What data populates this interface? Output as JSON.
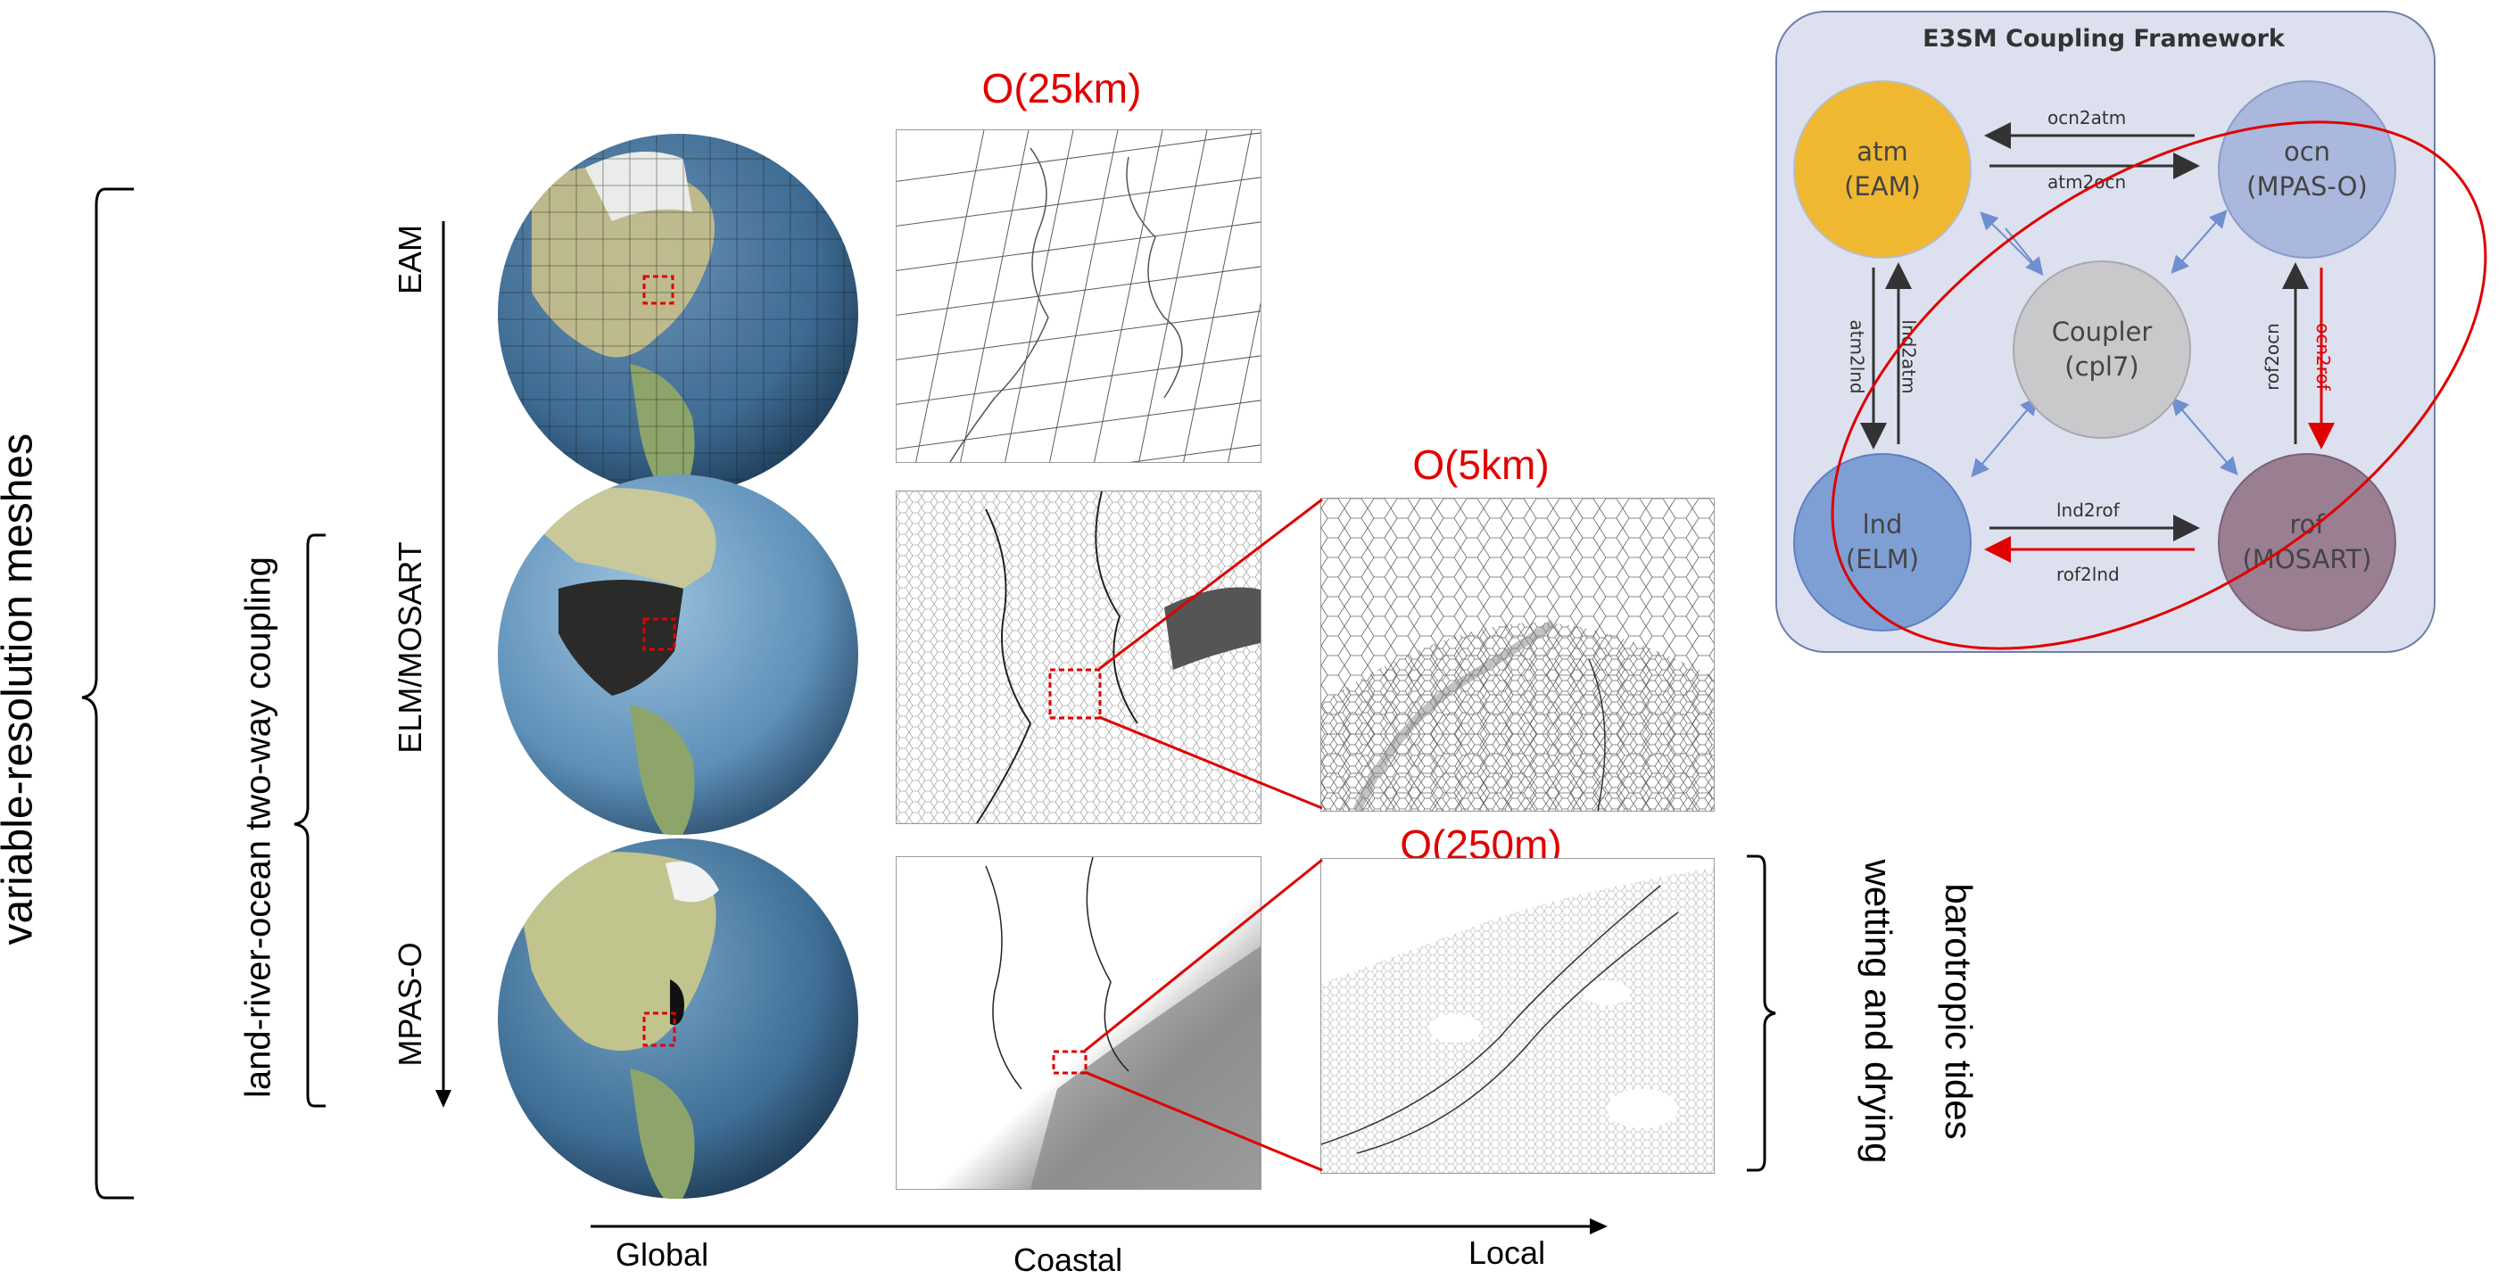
{
  "left_labels": {
    "variable_resolution": "variable-resolution meshes",
    "coupling": "land-river-ocean two-way coupling"
  },
  "model_labels": {
    "eam": "EAM",
    "elm_mosart": "ELM/MOSART",
    "mpas_o": "MPAS-O"
  },
  "resolution_labels": {
    "r25km": "O(25km)",
    "r5km": "O(5km)",
    "r250m": "O(250m)"
  },
  "axis": {
    "global": "Global",
    "coastal": "Coastal",
    "local": "Local"
  },
  "right_labels": {
    "tides": "barotropic tides",
    "wetting": "wetting and drying"
  },
  "framework": {
    "title": "E3SM Coupling Framework",
    "nodes": {
      "atm": {
        "name": "atm",
        "model": "(EAM)",
        "color": "#f0b830"
      },
      "ocn": {
        "name": "ocn",
        "model": "(MPAS-O)",
        "color": "#a9b8dc"
      },
      "cpl": {
        "name": "Coupler",
        "model": "(cpl7)",
        "color": "#c9c9cc"
      },
      "lnd": {
        "name": "lnd",
        "model": "(ELM)",
        "color": "#7e9fd4"
      },
      "rof": {
        "name": "rof",
        "model": "(MOSART)",
        "color": "#9a7e92"
      }
    },
    "edges": {
      "ocn2atm": "ocn2atm",
      "atm2ocn": "atm2ocn",
      "atm2lnd": "atm2lnd",
      "lnd2atm": "lnd2atm",
      "rof2ocn": "rof2ocn",
      "ocn2rof": "ocn2rof",
      "lnd2rof": "lnd2rof",
      "rof2lnd": "rof2lnd"
    },
    "panel_color": "#dde1ef",
    "highlight_color": "#e00000"
  }
}
